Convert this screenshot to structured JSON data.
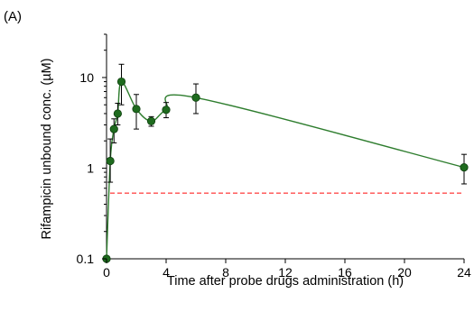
{
  "chart_data": {
    "type": "line",
    "panel_label": "(A)",
    "xlabel": "Time after probe drugs administration (h)",
    "ylabel": "Rifampicin unbound conc. (µM)",
    "xlim": [
      0,
      24
    ],
    "ylim": [
      0.1,
      30
    ],
    "yscale": "log",
    "grid": false,
    "x_ticks": [
      0,
      4,
      8,
      12,
      16,
      20,
      24
    ],
    "y_ticks": [
      0.1,
      1,
      10
    ],
    "y_tick_labels": [
      "0.1",
      "1",
      "10"
    ],
    "colors": {
      "series": "#2e7d2e",
      "marker": "#1e6b1e",
      "reference_line": "#ff4d4d"
    },
    "series": [
      {
        "x": [
          0,
          0.25,
          0.5,
          0.75,
          1,
          2,
          3,
          4,
          6,
          24
        ],
        "y": [
          0.1,
          1.2,
          2.7,
          4.0,
          9.0,
          4.5,
          3.3,
          4.4,
          6.0,
          1.02
        ],
        "err_low": [
          0,
          0.5,
          0.8,
          1.0,
          4.0,
          1.8,
          0.4,
          0.8,
          2.0,
          0.35
        ],
        "err_high": [
          0,
          0.9,
          0.8,
          1.2,
          5.0,
          2.0,
          0.4,
          0.9,
          2.5,
          0.4
        ]
      }
    ],
    "reference_line": {
      "y": 0.53,
      "style": "dashed"
    }
  }
}
